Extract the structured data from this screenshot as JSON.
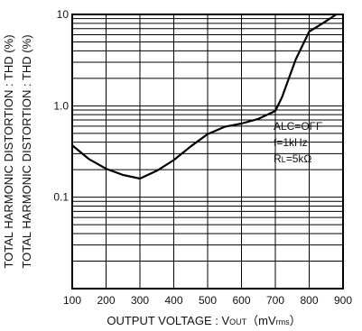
{
  "chart_data": {
    "type": "line",
    "xlabel": "OUTPUT VOLTAGE : V",
    "xlabel_sub": "OUT",
    "xlabel_unit_open": "（mV",
    "xlabel_unit_sub": "rms",
    "xlabel_unit_close": "）",
    "ylabel_lines": [
      "TOTAL HARMONIC DISTORTION : THD  (%)",
      "TOTAL HARMONIC DISTORTION : THD  (%)"
    ],
    "xlim": [
      100,
      900
    ],
    "ylim": [
      0.01,
      10
    ],
    "y_scale": "log",
    "x_ticks": [
      "100",
      "200",
      "300",
      "400",
      "500",
      "600",
      "700",
      "800",
      "900"
    ],
    "y_ticks": [
      {
        "value": 10,
        "label": "10"
      },
      {
        "value": 1,
        "label": "1.0"
      },
      {
        "value": 0.1,
        "label": "0.1"
      }
    ],
    "series": [
      {
        "x": [
          100,
          150,
          200,
          250,
          300,
          350,
          400,
          450,
          500,
          550,
          600,
          650,
          700,
          720,
          760,
          800,
          840,
          880
        ],
        "y": [
          0.37,
          0.26,
          0.205,
          0.175,
          0.16,
          0.195,
          0.255,
          0.36,
          0.49,
          0.59,
          0.64,
          0.72,
          0.88,
          1.25,
          3.2,
          6.5,
          8.0,
          10.0
        ]
      }
    ],
    "annotations": {
      "alc": "ALC=OFF",
      "freq": "f=1kHz",
      "rl_main": "R",
      "rl_sub": "L",
      "rl_value": "=5kΩ"
    },
    "grid": true
  }
}
